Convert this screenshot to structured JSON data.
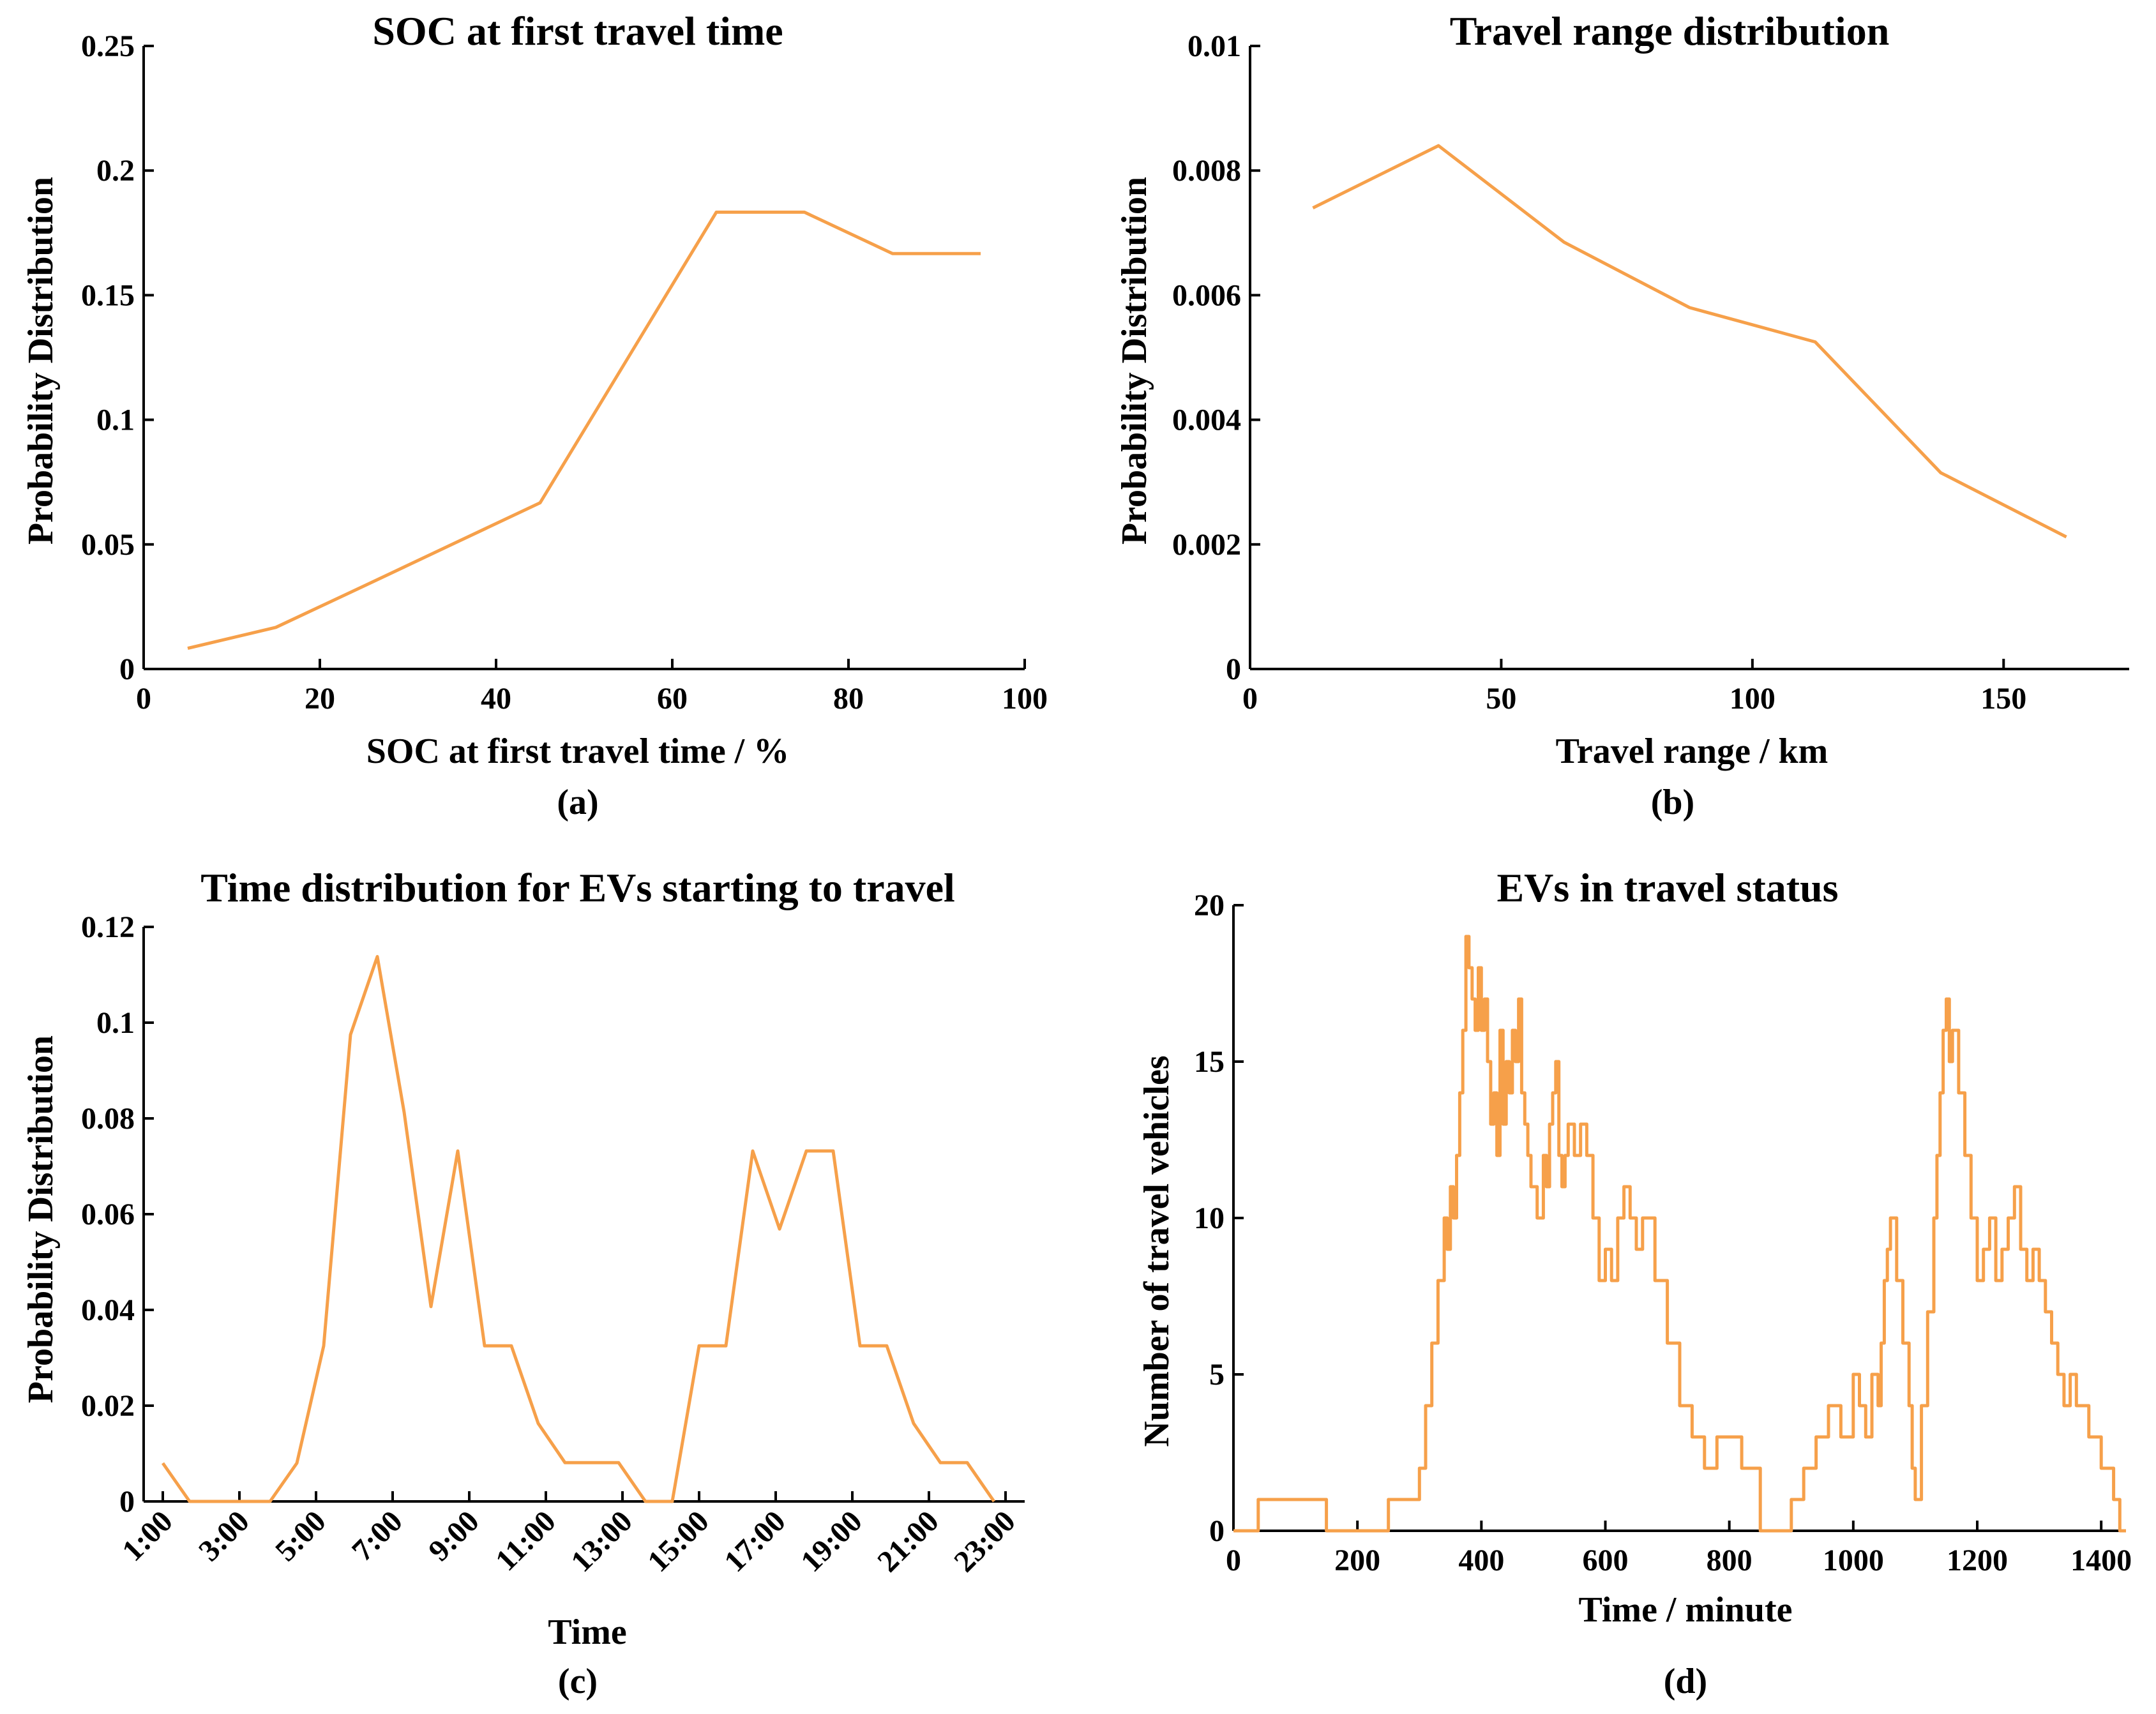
{
  "chart_data": [
    {
      "id": "a",
      "type": "line",
      "title": "SOC at first travel time",
      "xlabel": "SOC at first travel time / %",
      "ylabel": "Probability Distribution",
      "caption": "(a)",
      "xlim": [
        0,
        100
      ],
      "ylim": [
        0,
        0.25
      ],
      "xticks": [
        0,
        20,
        40,
        60,
        80,
        100
      ],
      "xtick_labels": [
        "0",
        "20",
        "40",
        "60",
        "80",
        "100"
      ],
      "yticks": [
        0,
        0.05,
        0.1,
        0.15,
        0.2,
        0.25
      ],
      "ytick_labels": [
        "0",
        "0.05",
        "0.1",
        "0.15",
        "0.2",
        "0.25"
      ],
      "color": "#f6a04a",
      "x": [
        5,
        15,
        25,
        35,
        45,
        55,
        65,
        75,
        85,
        95
      ],
      "y": [
        0.0083,
        0.0167,
        0.0333,
        0.05,
        0.0667,
        0.125,
        0.1833,
        0.1833,
        0.1667,
        0.1667
      ]
    },
    {
      "id": "b",
      "type": "line",
      "title": "Travel range distribution",
      "xlabel": "Travel range / km",
      "ylabel": "Probability Distribution",
      "caption": "(b)",
      "xlim": [
        0,
        175
      ],
      "ylim": [
        0,
        0.01
      ],
      "xticks": [
        0,
        50,
        100,
        150
      ],
      "xtick_labels": [
        "0",
        "50",
        "100",
        "150"
      ],
      "yticks": [
        0,
        0.002,
        0.004,
        0.006,
        0.008,
        0.01
      ],
      "ytick_labels": [
        "0",
        "0.002",
        "0.004",
        "0.006",
        "0.008",
        "0.01"
      ],
      "color": "#f6a04a",
      "x": [
        12.5,
        37.5,
        62.5,
        87.5,
        112.5,
        137.5,
        162.5
      ],
      "y": [
        0.0074,
        0.0084,
        0.00685,
        0.0058,
        0.00525,
        0.00315,
        0.00212
      ]
    },
    {
      "id": "c",
      "type": "line",
      "title": "Time distribution for EVs starting to travel",
      "xlabel": "Time",
      "ylabel": "Probability Distribution",
      "caption": "(c)",
      "xlim": [
        0.5,
        23.5
      ],
      "ylim": [
        0,
        0.12
      ],
      "xticks": [
        1,
        3,
        5,
        7,
        9,
        11,
        13,
        15,
        17,
        19,
        21,
        23
      ],
      "xtick_labels": [
        "1:00",
        "3:00",
        "5:00",
        "7:00",
        "9:00",
        "11:00",
        "13:00",
        "15:00",
        "17:00",
        "19:00",
        "21:00",
        "23:00"
      ],
      "yticks": [
        0,
        0.02,
        0.04,
        0.06,
        0.08,
        0.1,
        0.12
      ],
      "ytick_labels": [
        "0",
        "0.02",
        "0.04",
        "0.06",
        "0.08",
        "0.1",
        "0.12"
      ],
      "color": "#f6a04a",
      "x": [
        1,
        1.7,
        2.4,
        3.1,
        3.8,
        4.5,
        5.2,
        5.9,
        6.6,
        7.3,
        8.0,
        8.7,
        9.4,
        10.1,
        10.8,
        11.5,
        12.2,
        12.9,
        13.6,
        14.3,
        15.0,
        15.7,
        16.4,
        17.1,
        17.8,
        18.5,
        19.2,
        19.9,
        20.6,
        21.3,
        22.0,
        22.7
      ],
      "y": [
        0.008,
        0,
        0,
        0,
        0,
        0.008,
        0.0325,
        0.0975,
        0.1138,
        0.0813,
        0.0407,
        0.0732,
        0.0325,
        0.0325,
        0.0163,
        0.0081,
        0.0081,
        0.0081,
        0,
        0,
        0.0325,
        0.0325,
        0.0732,
        0.0569,
        0.0732,
        0.0732,
        0.0325,
        0.0325,
        0.0163,
        0.0081,
        0.0081,
        0
      ]
    },
    {
      "id": "d",
      "type": "line",
      "step": true,
      "title": "EVs in travel status",
      "xlabel": "Time / minute",
      "ylabel": "Number of travel vehicles",
      "caption": "(d)",
      "xlim": [
        0,
        1440
      ],
      "ylim": [
        0,
        20
      ],
      "xticks": [
        0,
        200,
        400,
        600,
        800,
        1000,
        1200,
        1400
      ],
      "xtick_labels": [
        "0",
        "200",
        "400",
        "600",
        "800",
        "1000",
        "1200",
        "1400"
      ],
      "yticks": [
        0,
        5,
        10,
        15,
        20
      ],
      "ytick_labels": [
        "0",
        "5",
        "10",
        "15",
        "20"
      ],
      "color": "#f6a04a",
      "x": [
        0,
        40,
        150,
        250,
        300,
        310,
        320,
        330,
        340,
        345,
        350,
        355,
        360,
        365,
        370,
        375,
        380,
        385,
        390,
        395,
        400,
        405,
        410,
        415,
        420,
        425,
        430,
        435,
        440,
        445,
        450,
        455,
        460,
        465,
        470,
        475,
        480,
        490,
        500,
        505,
        510,
        515,
        520,
        525,
        530,
        535,
        540,
        550,
        560,
        570,
        580,
        590,
        600,
        610,
        620,
        630,
        640,
        650,
        660,
        680,
        700,
        720,
        740,
        760,
        780,
        800,
        820,
        850,
        900,
        920,
        940,
        960,
        980,
        1000,
        1010,
        1020,
        1030,
        1040,
        1045,
        1050,
        1055,
        1060,
        1070,
        1080,
        1090,
        1095,
        1100,
        1110,
        1120,
        1130,
        1135,
        1140,
        1145,
        1150,
        1155,
        1160,
        1170,
        1180,
        1190,
        1200,
        1210,
        1220,
        1230,
        1240,
        1250,
        1260,
        1270,
        1280,
        1290,
        1300,
        1310,
        1320,
        1330,
        1340,
        1350,
        1360,
        1380,
        1400,
        1420,
        1430,
        1440
      ],
      "y": [
        0,
        1,
        0,
        1,
        2,
        4,
        6,
        8,
        10,
        9,
        11,
        10,
        12,
        14,
        16,
        19,
        18,
        17,
        16,
        18,
        16,
        17,
        15,
        13,
        14,
        12,
        16,
        13,
        15,
        14,
        16,
        15,
        17,
        14,
        13,
        12,
        11,
        10,
        12,
        11,
        13,
        14,
        15,
        12,
        11,
        12,
        13,
        12,
        13,
        12,
        10,
        8,
        9,
        8,
        10,
        11,
        10,
        9,
        10,
        8,
        6,
        4,
        3,
        2,
        3,
        3,
        2,
        0,
        1,
        2,
        3,
        4,
        3,
        5,
        4,
        3,
        5,
        4,
        6,
        8,
        9,
        10,
        8,
        6,
        4,
        2,
        1,
        4,
        7,
        10,
        12,
        14,
        16,
        17,
        15,
        16,
        14,
        12,
        10,
        8,
        9,
        10,
        8,
        9,
        10,
        11,
        9,
        8,
        9,
        8,
        7,
        6,
        5,
        4,
        5,
        4,
        3,
        2,
        1,
        0,
        0
      ]
    }
  ]
}
